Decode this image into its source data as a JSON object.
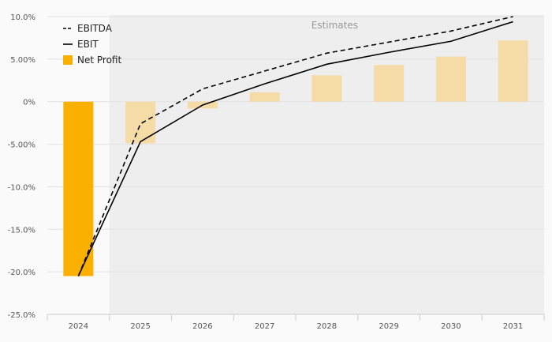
{
  "chart_data": {
    "type": "bar+line",
    "categories": [
      "2024",
      "2025",
      "2026",
      "2027",
      "2028",
      "2029",
      "2030",
      "2031"
    ],
    "estimates_from_index": 1,
    "annotation": "Estimates",
    "ylim": [
      -25,
      10
    ],
    "yticks": [
      -25,
      -20,
      -15,
      -10,
      -5,
      0,
      5,
      10
    ],
    "ytick_labels": [
      "-25.0%",
      "-20.0%",
      "-15.0%",
      "-10.0%",
      "-5.00%",
      "0%",
      "5.00%",
      "10.0%"
    ],
    "grid": true,
    "legend_position": "top-left",
    "series": [
      {
        "name": "EBITDA",
        "type": "line",
        "style": "dashed",
        "color": "#000000",
        "values": [
          -20.5,
          -2.6,
          1.5,
          3.6,
          5.7,
          7.0,
          8.3,
          10.0
        ]
      },
      {
        "name": "EBIT",
        "type": "line",
        "style": "solid",
        "color": "#000000",
        "values": [
          -20.5,
          -4.7,
          -0.4,
          2.1,
          4.4,
          5.8,
          7.1,
          9.4
        ]
      },
      {
        "name": "Net Profit",
        "type": "bar",
        "color": "#f9b000",
        "estimate_color": "#f5dba6",
        "values": [
          -20.5,
          -4.9,
          -0.8,
          1.1,
          3.1,
          4.3,
          5.3,
          7.2
        ]
      }
    ]
  }
}
